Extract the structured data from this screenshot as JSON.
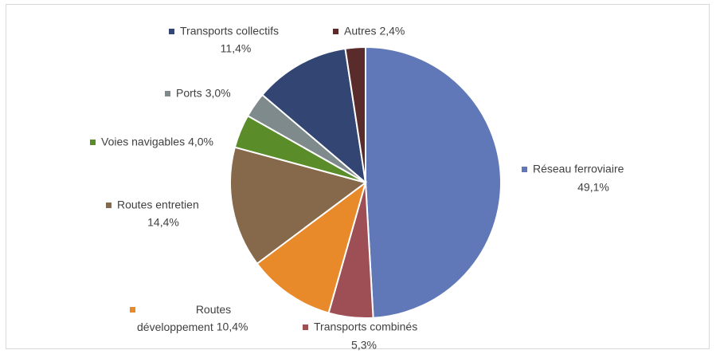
{
  "chart_data": {
    "type": "pie",
    "categories": [
      "Réseau ferroviaire",
      "Transports combinés",
      "Routes développement",
      "Routes entretien",
      "Voies navigables",
      "Ports",
      "Transports collectifs",
      "Autres"
    ],
    "values": [
      49.1,
      5.3,
      10.4,
      14.4,
      4.0,
      3.0,
      11.4,
      2.4
    ],
    "value_labels": [
      "49,1%",
      "5,3%",
      "10,4%",
      "14,4%",
      "4,0%",
      "3,0%",
      "11,4%",
      "2,4%"
    ],
    "colors": [
      "#6078b8",
      "#9e4f55",
      "#e8892a",
      "#85694a",
      "#5b8c2a",
      "#7f8a8c",
      "#334673",
      "#5a2b2b"
    ]
  }
}
